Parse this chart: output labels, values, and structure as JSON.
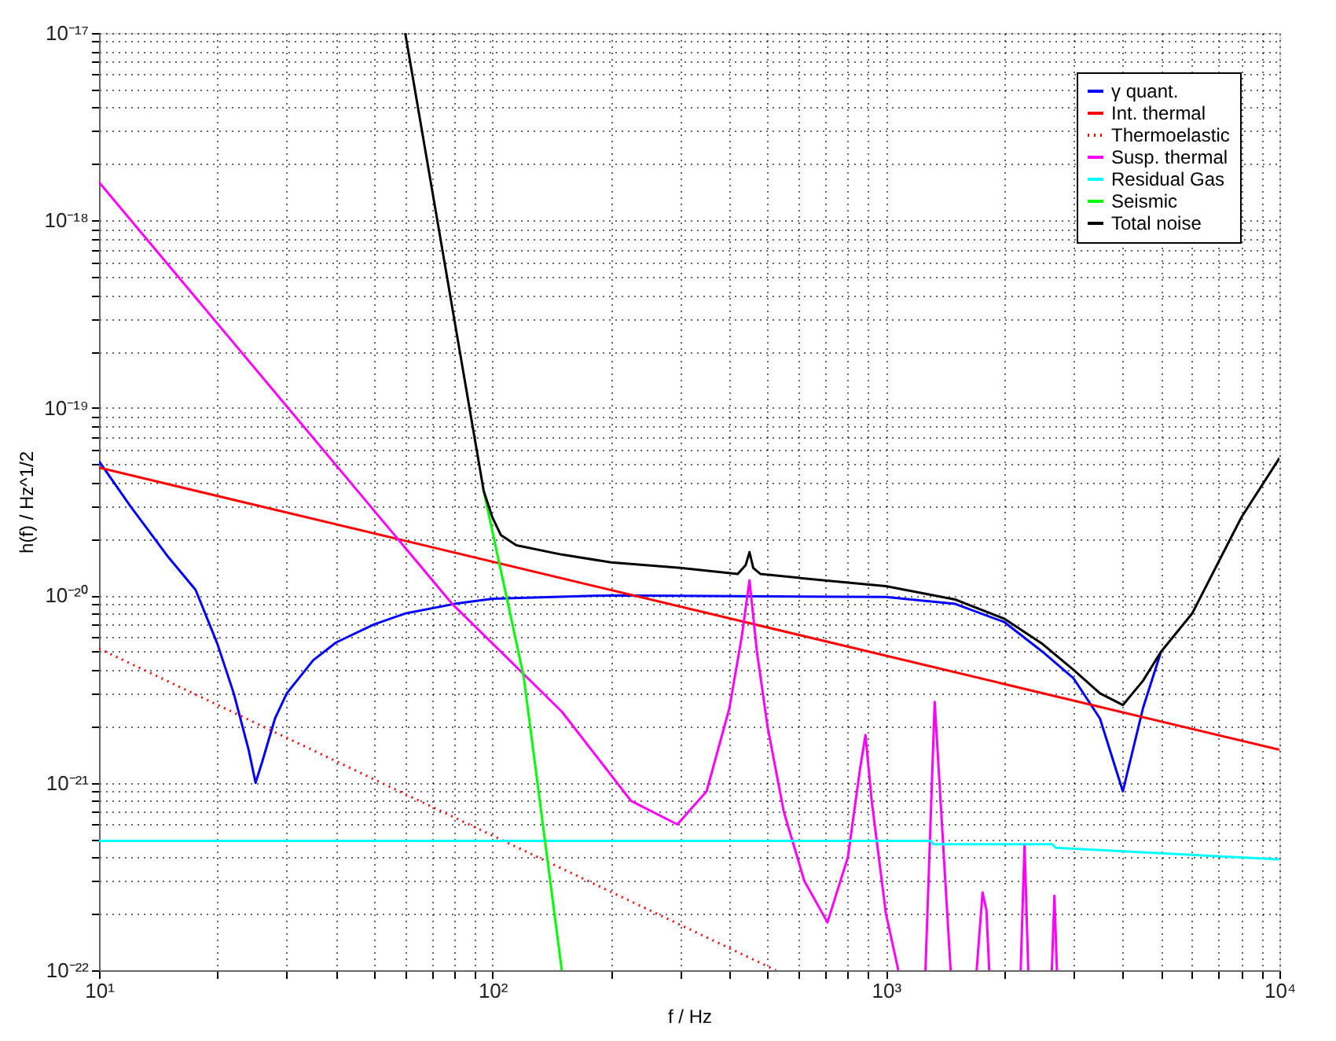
{
  "chart_data": {
    "type": "line",
    "xlabel": "f / Hz",
    "ylabel": "h(f) / Hz^1/2",
    "log": "xy",
    "grid": true,
    "legend": "top right",
    "xlim": [
      10,
      10000
    ],
    "ylim": [
      1e-22,
      1e-17
    ],
    "xticks": [
      {
        "value": 10,
        "label": "10¹"
      },
      {
        "value": 20,
        "label": null
      },
      {
        "value": 30,
        "label": null
      },
      {
        "value": 40,
        "label": null
      },
      {
        "value": 50,
        "label": null
      },
      {
        "value": 60,
        "label": null
      },
      {
        "value": 70,
        "label": null
      },
      {
        "value": 80,
        "label": null
      },
      {
        "value": 90,
        "label": null
      },
      {
        "value": 100,
        "label": "10²"
      },
      {
        "value": 200,
        "label": null
      },
      {
        "value": 300,
        "label": null
      },
      {
        "value": 400,
        "label": null
      },
      {
        "value": 500,
        "label": null
      },
      {
        "value": 600,
        "label": null
      },
      {
        "value": 700,
        "label": null
      },
      {
        "value": 800,
        "label": null
      },
      {
        "value": 900,
        "label": null
      },
      {
        "value": 1000,
        "label": "10³"
      },
      {
        "value": 2000,
        "label": null
      },
      {
        "value": 3000,
        "label": null
      },
      {
        "value": 4000,
        "label": null
      },
      {
        "value": 5000,
        "label": null
      },
      {
        "value": 6000,
        "label": null
      },
      {
        "value": 7000,
        "label": null
      },
      {
        "value": 8000,
        "label": null
      },
      {
        "value": 9000,
        "label": null
      },
      {
        "value": 10000,
        "label": "10⁴"
      }
    ],
    "yticks": [
      {
        "value": 1e-22,
        "label": "10⁻²²"
      },
      {
        "value": 2e-22,
        "label": null
      },
      {
        "value": 3e-22,
        "label": null
      },
      {
        "value": 4e-22,
        "label": null
      },
      {
        "value": 5e-22,
        "label": null
      },
      {
        "value": 6e-22,
        "label": null
      },
      {
        "value": 7e-22,
        "label": null
      },
      {
        "value": 8e-22,
        "label": null
      },
      {
        "value": 9e-22,
        "label": null
      },
      {
        "value": 1e-21,
        "label": "10⁻²¹"
      },
      {
        "value": 2e-21,
        "label": null
      },
      {
        "value": 3e-21,
        "label": null
      },
      {
        "value": 4e-21,
        "label": null
      },
      {
        "value": 5e-21,
        "label": null
      },
      {
        "value": 6e-21,
        "label": null
      },
      {
        "value": 7e-21,
        "label": null
      },
      {
        "value": 8e-21,
        "label": null
      },
      {
        "value": 9e-21,
        "label": null
      },
      {
        "value": 1e-20,
        "label": "10⁻²⁰"
      },
      {
        "value": 2e-20,
        "label": null
      },
      {
        "value": 3e-20,
        "label": null
      },
      {
        "value": 4e-20,
        "label": null
      },
      {
        "value": 5e-20,
        "label": null
      },
      {
        "value": 6e-20,
        "label": null
      },
      {
        "value": 7e-20,
        "label": null
      },
      {
        "value": 8e-20,
        "label": null
      },
      {
        "value": 9e-20,
        "label": null
      },
      {
        "value": 1e-19,
        "label": "10⁻¹⁹"
      },
      {
        "value": 2e-19,
        "label": null
      },
      {
        "value": 3e-19,
        "label": null
      },
      {
        "value": 4e-19,
        "label": null
      },
      {
        "value": 5e-19,
        "label": null
      },
      {
        "value": 6e-19,
        "label": null
      },
      {
        "value": 7e-19,
        "label": null
      },
      {
        "value": 8e-19,
        "label": null
      },
      {
        "value": 9e-19,
        "label": null
      },
      {
        "value": 1e-18,
        "label": "10⁻¹⁸"
      },
      {
        "value": 2e-18,
        "label": null
      },
      {
        "value": 3e-18,
        "label": null
      },
      {
        "value": 4e-18,
        "label": null
      },
      {
        "value": 5e-18,
        "label": null
      },
      {
        "value": 6e-18,
        "label": null
      },
      {
        "value": 7e-18,
        "label": null
      },
      {
        "value": 8e-18,
        "label": null
      },
      {
        "value": 9e-18,
        "label": null
      },
      {
        "value": 1e-17,
        "label": "10⁻¹⁷"
      }
    ],
    "series": [
      {
        "name": "γ quant.",
        "color": "#0000ff",
        "line_style": "solid",
        "x": [
          10,
          12,
          15,
          17.6,
          20,
          22,
          24,
          25,
          26,
          28,
          30,
          35,
          40,
          50,
          60,
          80,
          100,
          200,
          1000,
          1500,
          2000,
          2500,
          3000,
          3500,
          4000,
          4500,
          5000
        ],
        "values": [
          5.2e-20,
          3e-20,
          1.6e-20,
          1.07e-20,
          5.5e-21,
          3e-21,
          1.5e-21,
          1e-21,
          1.3e-21,
          2.2e-21,
          3e-21,
          4.5e-21,
          5.6e-21,
          7e-21,
          8e-21,
          9e-21,
          9.6e-21,
          1e-20,
          9.8e-21,
          9e-21,
          7.2e-21,
          5e-21,
          3.6e-21,
          2.2e-21,
          9e-22,
          2.5e-21,
          5e-21
        ]
      },
      {
        "name": "Int. thermal",
        "color": "#ff0000",
        "line_style": "solid",
        "x": [
          10,
          10000
        ],
        "values": [
          4.8e-20,
          1.5e-21
        ]
      },
      {
        "name": "Thermoelastic",
        "color": "#ff0000",
        "line_style": "dotted",
        "x": [
          10,
          525
        ],
        "values": [
          5.2e-21,
          1e-22
        ]
      },
      {
        "name": "Susp. thermal",
        "color": "#ff00ff",
        "line_style": "solid",
        "x": [
          10,
          79,
          150,
          225,
          295,
          350,
          400,
          430,
          450,
          470,
          500,
          550,
          620,
          710,
          800,
          860,
          887,
          920,
          1000,
          1075,
          1100,
          1260,
          1330,
          1460,
          1500,
          1700,
          1760,
          1800,
          1830,
          1900,
          2200,
          2250,
          2300,
          2400,
          2640,
          2680,
          2720
        ],
        "values": [
          1.6e-18,
          9e-21,
          2.4e-21,
          8e-22,
          6e-22,
          9e-22,
          2.5e-21,
          6e-21,
          1.2e-20,
          5e-21,
          2e-21,
          7e-22,
          3e-22,
          1.8e-22,
          4e-22,
          1.2e-21,
          1.8e-21,
          8e-22,
          2e-22,
          1e-22,
          null,
          1e-22,
          2.7e-21,
          1e-22,
          null,
          1e-22,
          2.6e-22,
          2.1e-22,
          1e-22,
          null,
          1e-22,
          4.7e-22,
          1e-22,
          null,
          1e-22,
          2.5e-22,
          1e-22
        ]
      },
      {
        "name": "Residual Gas",
        "color": "#00ffff",
        "line_style": "solid",
        "x": [
          10,
          1300,
          1320,
          2650,
          2700,
          10000
        ],
        "values": [
          4.9e-22,
          4.9e-22,
          4.7e-22,
          4.7e-22,
          4.5e-22,
          3.9e-22
        ]
      },
      {
        "name": "Seismic",
        "color": "#00ff00",
        "line_style": "solid",
        "x": [
          95,
          120,
          150
        ],
        "values": [
          3.6e-20,
          3.7e-21,
          1e-22
        ]
      },
      {
        "name": "Total noise",
        "color": "#000000",
        "line_style": "solid",
        "x": [
          60,
          95,
          100,
          105,
          115,
          150,
          200,
          300,
          420,
          440,
          450,
          460,
          480,
          700,
          1000,
          1500,
          2000,
          2500,
          3000,
          3500,
          4000,
          4500,
          5000,
          6000,
          8000,
          10000
        ],
        "values": [
          1e-17,
          3.6e-20,
          2.6e-20,
          2.1e-20,
          1.85e-20,
          1.65e-20,
          1.5e-20,
          1.4e-20,
          1.3e-20,
          1.45e-20,
          1.7e-20,
          1.4e-20,
          1.3e-20,
          1.2e-20,
          1.12e-20,
          9.5e-21,
          7.5e-21,
          5.5e-21,
          4e-21,
          3e-21,
          2.6e-21,
          3.5e-21,
          5e-21,
          8e-21,
          2.6e-20,
          5.4e-20
        ]
      }
    ]
  }
}
